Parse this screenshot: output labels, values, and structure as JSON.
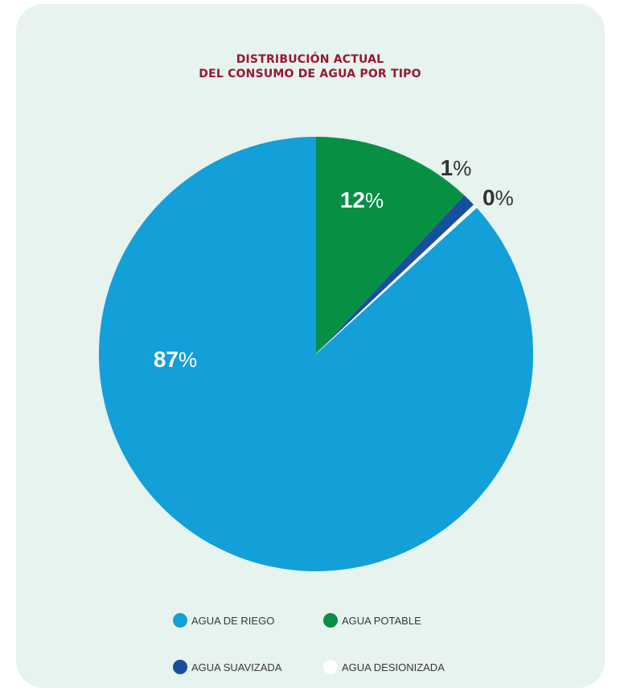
{
  "title_line1": "DISTRIBUCIÓN ACTUAL",
  "title_line2": "DEL CONSUMO DE AGUA POR TIPO",
  "chart_data": {
    "type": "pie",
    "title": "DISTRIBUCIÓN ACTUAL DEL CONSUMO DE AGUA POR TIPO",
    "legend_position": "bottom",
    "slices": [
      {
        "name": "AGUA POTABLE",
        "value": 12,
        "label": "12",
        "color": "#079043",
        "label_color": "#ffffff"
      },
      {
        "name": "AGUA SUAVIZADA",
        "value": 1,
        "label": "1",
        "color": "#174f9c",
        "label_color": "#333333"
      },
      {
        "name": "AGUA DESIONIZADA",
        "value": 0.3,
        "label": "0",
        "color": "#ffffff",
        "label_color": "#333333"
      },
      {
        "name": "AGUA DE RIEGO",
        "value": 87,
        "label": "87",
        "color": "#139fd8",
        "label_color": "#ffffff"
      }
    ],
    "percent_sign": "%",
    "legend": [
      {
        "name": "AGUA DE RIEGO",
        "color": "#139fd8"
      },
      {
        "name": "AGUA POTABLE",
        "color": "#079043"
      },
      {
        "name": "AGUA SUAVIZADA",
        "color": "#174f9c"
      },
      {
        "name": "AGUA DESIONIZADA",
        "color": "#ffffff"
      }
    ]
  }
}
